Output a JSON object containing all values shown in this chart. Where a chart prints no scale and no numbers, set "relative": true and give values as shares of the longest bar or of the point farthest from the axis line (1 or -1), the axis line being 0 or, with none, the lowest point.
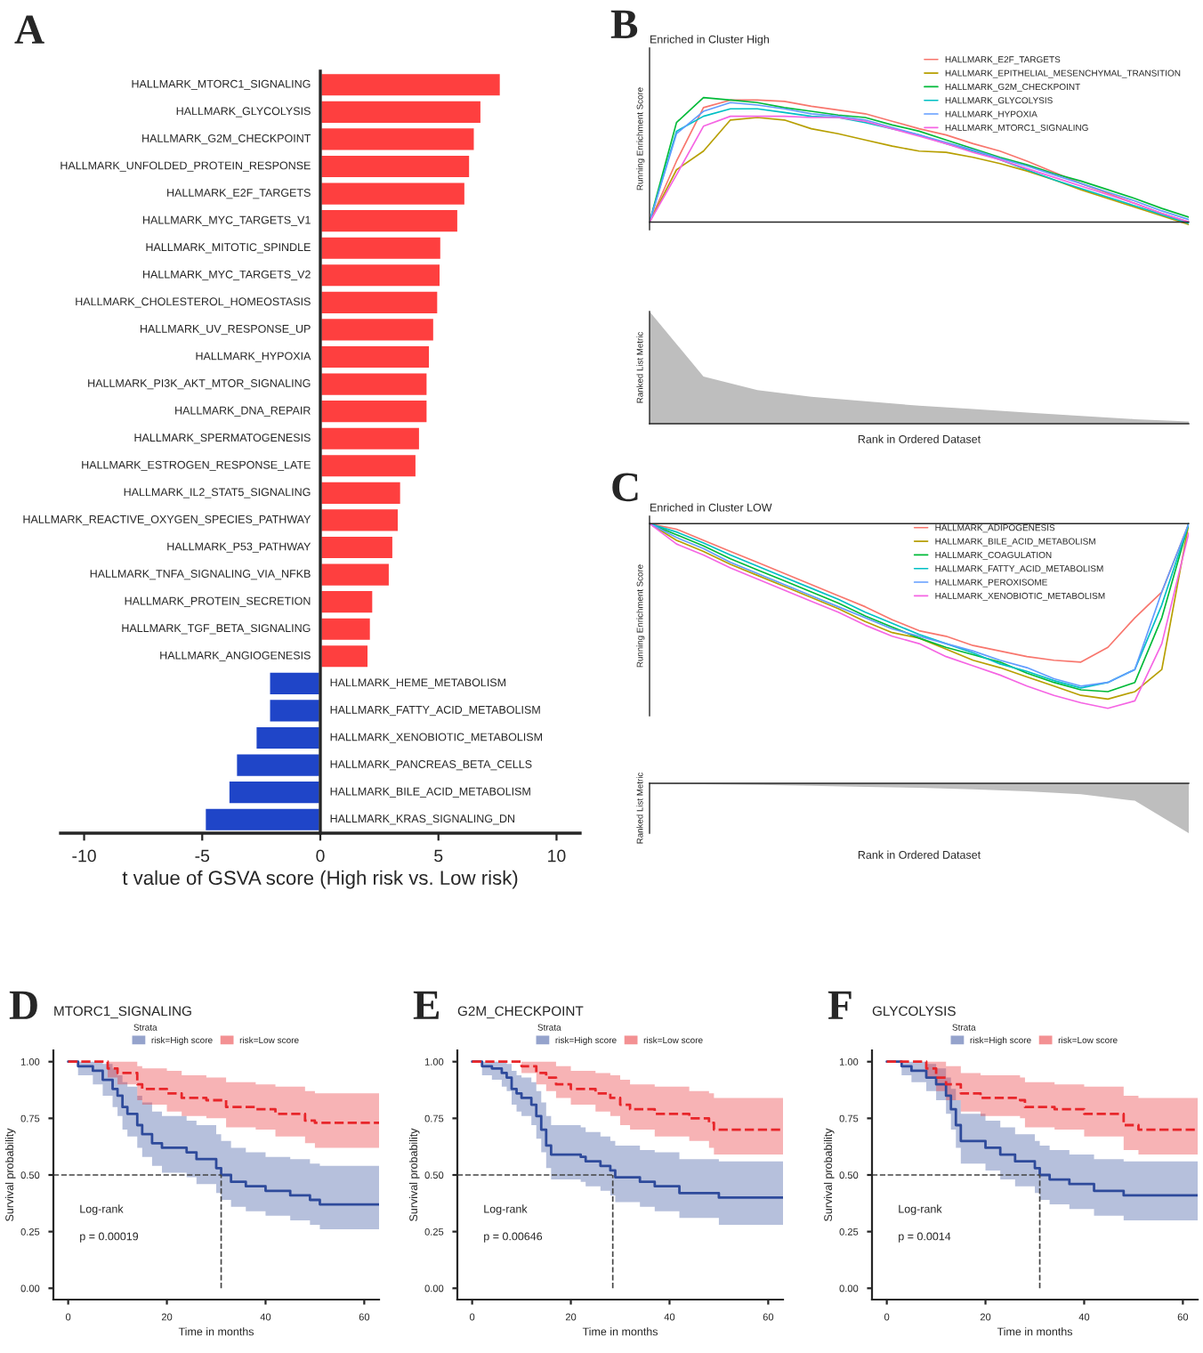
{
  "chart_data": [
    {
      "type": "bar",
      "orientation": "horizontal",
      "annotations": [
        "A"
      ],
      "xlabel": "t value of GSVA score (High risk vs. Low risk)",
      "categories": [
        "HALLMARK_MTORC1_SIGNALING",
        "HALLMARK_GLYCOLYSIS",
        "HALLMARK_G2M_CHECKPOINT",
        "HALLMARK_UNFOLDED_PROTEIN_RESPONSE",
        "HALLMARK_E2F_TARGETS",
        "HALLMARK_MYC_TARGETS_V1",
        "HALLMARK_MITOTIC_SPINDLE",
        "HALLMARK_MYC_TARGETS_V2",
        "HALLMARK_CHOLESTEROL_HOMEOSTASIS",
        "HALLMARK_UV_RESPONSE_UP",
        "HALLMARK_HYPOXIA",
        "HALLMARK_PI3K_AKT_MTOR_SIGNALING",
        "HALLMARK_DNA_REPAIR",
        "HALLMARK_SPERMATOGENESIS",
        "HALLMARK_ESTROGEN_RESPONSE_LATE",
        "HALLMARK_IL2_STAT5_SIGNALING",
        "HALLMARK_REACTIVE_OXYGEN_SPECIES_PATHWAY",
        "HALLMARK_P53_PATHWAY",
        "HALLMARK_TNFA_SIGNALING_VIA_NFKB",
        "HALLMARK_PROTEIN_SECRETION",
        "HALLMARK_TGF_BETA_SIGNALING",
        "HALLMARK_ANGIOGENESIS",
        "HALLMARK_HEME_METABOLISM",
        "HALLMARK_FATTY_ACID_METABOLISM",
        "HALLMARK_XENOBIOTIC_METABOLISM",
        "HALLMARK_PANCREAS_BETA_CELLS",
        "HALLMARK_BILE_ACID_METABOLISM",
        "HALLMARK_KRAS_SIGNALING_DN"
      ],
      "values": [
        7.65,
        6.83,
        6.55,
        6.35,
        6.15,
        5.85,
        5.13,
        5.1,
        5.0,
        4.83,
        4.65,
        4.55,
        4.55,
        4.23,
        4.08,
        3.43,
        3.33,
        3.1,
        2.95,
        2.25,
        2.15,
        2.05,
        -2.18,
        -2.18,
        -2.75,
        -3.58,
        -3.9,
        -4.9
      ],
      "colors": [
        "#fe3f3f",
        "#fe3f3f",
        "#fe3f3f",
        "#fe3f3f",
        "#fe3f3f",
        "#fe3f3f",
        "#fe3f3f",
        "#fe3f3f",
        "#fe3f3f",
        "#fe3f3f",
        "#fe3f3f",
        "#fe3f3f",
        "#fe3f3f",
        "#fe3f3f",
        "#fe3f3f",
        "#fe3f3f",
        "#fe3f3f",
        "#fe3f3f",
        "#fe3f3f",
        "#fe3f3f",
        "#fe3f3f",
        "#fe3f3f",
        "#1f45c8",
        "#1f45c8",
        "#1f45c8",
        "#1f45c8",
        "#1f45c8",
        "#1f45c8"
      ],
      "xlim": [
        -11,
        11
      ],
      "xticks": [
        -10,
        -5,
        0,
        5,
        10
      ]
    },
    {
      "type": "line",
      "relative": true,
      "annotations": [
        "B"
      ],
      "title": "Enriched in Cluster High",
      "ylabel": "Running Enrichment Score",
      "legend": "top right",
      "categories": [
        null,
        null,
        null,
        null,
        null,
        null,
        null,
        null,
        null,
        null,
        null,
        null,
        null,
        null,
        null,
        null,
        null,
        null,
        null,
        null,
        null
      ],
      "series": [
        {
          "name": "HALLMARK_E2F_TARGETS",
          "color": "#f8766d",
          "values": [
            0,
            0.49,
            0.92,
            0.98,
            0.98,
            0.97,
            0.93,
            0.9,
            0.87,
            0.81,
            0.75,
            0.7,
            0.63,
            0.57,
            0.49,
            0.4,
            0.31,
            0.23,
            0.15,
            0.07,
            0
          ]
        },
        {
          "name": "HALLMARK_EPITHELIAL_MESENCHYMAL_TRANSITION",
          "color": "#b79f00",
          "values": [
            0,
            0.42,
            0.57,
            0.82,
            0.84,
            0.82,
            0.75,
            0.71,
            0.66,
            0.61,
            0.57,
            0.56,
            0.52,
            0.47,
            0.41,
            0.34,
            0.26,
            0.19,
            0.12,
            0.05,
            -0.02
          ]
        },
        {
          "name": "HALLMARK_G2M_CHECKPOINT",
          "color": "#00ba38",
          "values": [
            0,
            0.8,
            1.0,
            0.98,
            0.96,
            0.92,
            0.89,
            0.86,
            0.84,
            0.78,
            0.73,
            0.66,
            0.59,
            0.52,
            0.46,
            0.39,
            0.33,
            0.26,
            0.19,
            0.11,
            0.04
          ]
        },
        {
          "name": "HALLMARK_GLYCOLYSIS",
          "color": "#00bfc4",
          "values": [
            0,
            0.73,
            0.85,
            0.91,
            0.91,
            0.88,
            0.85,
            0.84,
            0.8,
            0.75,
            0.7,
            0.63,
            0.57,
            0.5,
            0.42,
            0.34,
            0.27,
            0.2,
            0.13,
            0.06,
            -0.01
          ]
        },
        {
          "name": "HALLMARK_HYPOXIA",
          "color": "#619cff",
          "values": [
            0,
            0.71,
            0.89,
            0.96,
            0.94,
            0.91,
            0.87,
            0.85,
            0.82,
            0.76,
            0.7,
            0.64,
            0.58,
            0.51,
            0.45,
            0.38,
            0.31,
            0.24,
            0.17,
            0.09,
            0.02
          ]
        },
        {
          "name": "HALLMARK_MTORC1_SIGNALING",
          "color": "#f564e3",
          "values": [
            0,
            0.38,
            0.77,
            0.85,
            0.85,
            0.85,
            0.84,
            0.84,
            0.81,
            0.75,
            0.69,
            0.63,
            0.56,
            0.5,
            0.43,
            0.36,
            0.29,
            0.22,
            0.15,
            0.07,
            0
          ]
        }
      ]
    },
    {
      "type": "area",
      "relative": true,
      "ylabel": "Ranked List Metric",
      "xlabel": "Rank in Ordered Dataset",
      "categories": [
        null,
        null,
        null,
        null,
        null,
        null,
        null,
        null,
        null,
        null,
        null
      ],
      "series": [
        {
          "color": "#bebebe",
          "values": [
            1,
            0.42,
            0.3,
            0.24,
            0.2,
            0.16,
            0.13,
            0.1,
            0.07,
            0.04,
            0.02
          ]
        }
      ]
    },
    {
      "type": "line",
      "relative": true,
      "annotations": [
        "C"
      ],
      "title": "Enriched in Cluster LOW",
      "ylabel": "Running Enrichment Score",
      "legend": "top right",
      "categories": [
        null,
        null,
        null,
        null,
        null,
        null,
        null,
        null,
        null,
        null,
        null,
        null,
        null,
        null,
        null,
        null,
        null,
        null,
        null,
        null,
        null
      ],
      "series": [
        {
          "name": "HALLMARK_ADIPOGENESIS",
          "color": "#f8766d",
          "values": [
            0,
            -0.03,
            -0.09,
            -0.15,
            -0.21,
            -0.27,
            -0.33,
            -0.39,
            -0.45,
            -0.52,
            -0.58,
            -0.61,
            -0.66,
            -0.69,
            -0.72,
            -0.74,
            -0.75,
            -0.67,
            -0.51,
            -0.37,
            0
          ]
        },
        {
          "name": "HALLMARK_BILE_ACID_METABOLISM",
          "color": "#b79f00",
          "values": [
            0,
            -0.09,
            -0.15,
            -0.22,
            -0.28,
            -0.34,
            -0.4,
            -0.46,
            -0.53,
            -0.59,
            -0.62,
            -0.68,
            -0.74,
            -0.78,
            -0.83,
            -0.88,
            -0.93,
            -0.95,
            -0.91,
            -0.79,
            0
          ]
        },
        {
          "name": "HALLMARK_COAGULATION",
          "color": "#00ba38",
          "values": [
            0,
            -0.06,
            -0.12,
            -0.19,
            -0.25,
            -0.31,
            -0.37,
            -0.43,
            -0.5,
            -0.56,
            -0.62,
            -0.67,
            -0.71,
            -0.75,
            -0.81,
            -0.86,
            -0.9,
            -0.91,
            -0.86,
            -0.51,
            0
          ]
        },
        {
          "name": "HALLMARK_FATTY_ACID_METABOLISM",
          "color": "#00bfc4",
          "values": [
            0,
            -0.045,
            -0.105,
            -0.17,
            -0.23,
            -0.29,
            -0.35,
            -0.41,
            -0.48,
            -0.54,
            -0.6,
            -0.65,
            -0.7,
            -0.76,
            -0.8,
            -0.85,
            -0.89,
            -0.86,
            -0.79,
            -0.44,
            0
          ]
        },
        {
          "name": "HALLMARK_PEROXISOME",
          "color": "#619cff",
          "values": [
            0,
            -0.075,
            -0.135,
            -0.21,
            -0.27,
            -0.33,
            -0.39,
            -0.45,
            -0.51,
            -0.57,
            -0.61,
            -0.65,
            -0.69,
            -0.74,
            -0.78,
            -0.84,
            -0.88,
            -0.86,
            -0.79,
            -0.37,
            0
          ]
        },
        {
          "name": "HALLMARK_XENOBIOTIC_METABOLISM",
          "color": "#f564e3",
          "values": [
            0,
            -0.11,
            -0.17,
            -0.24,
            -0.3,
            -0.36,
            -0.42,
            -0.48,
            -0.55,
            -0.61,
            -0.65,
            -0.72,
            -0.77,
            -0.82,
            -0.88,
            -0.93,
            -0.97,
            -1.0,
            -0.96,
            -0.65,
            -0.05
          ]
        }
      ]
    },
    {
      "type": "area",
      "relative": true,
      "ylabel": "Ranked List Metric",
      "xlabel": "Rank in Ordered Dataset",
      "categories": [
        null,
        null,
        null,
        null,
        null,
        null,
        null,
        null,
        null,
        null,
        null
      ],
      "series": [
        {
          "color": "#bebebe",
          "values": [
            0,
            -0.02,
            -0.03,
            -0.05,
            -0.07,
            -0.09,
            -0.12,
            -0.16,
            -0.22,
            -0.35,
            -1
          ]
        }
      ]
    },
    {
      "type": "step",
      "title": "MTORC1_SIGNALING",
      "annotations": [
        "D",
        "Log-rank",
        "p = 0.00019"
      ],
      "xlabel": "Time in months",
      "ylabel": "Survival probability",
      "legend": "top",
      "legend_title": "Strata",
      "xlim": [
        -3,
        63
      ],
      "xticks": [
        0,
        20,
        40,
        60
      ],
      "ylim": [
        -0.05,
        1.05
      ],
      "yticks": [
        {
          "value": 0,
          "label": "0.00"
        },
        {
          "value": 0.25,
          "label": "0.25"
        },
        {
          "value": 0.5,
          "label": "0.50"
        },
        {
          "value": 0.75,
          "label": "0.75"
        },
        {
          "value": 1,
          "label": "1.00"
        }
      ],
      "ref_lines": [
        {
          "axis": "y",
          "value": 0.5,
          "line_style": "dashed"
        },
        {
          "axis": "x",
          "value": 31,
          "line_style": "dashed"
        }
      ],
      "series": [
        {
          "name": "risk=High score",
          "color": "#2e4a9b",
          "line_style": "solid",
          "x": [
            0,
            2,
            5,
            7,
            9,
            10,
            11,
            12,
            14,
            15,
            17,
            19,
            24,
            26,
            30,
            31,
            33,
            36,
            40,
            45,
            49,
            51,
            63
          ],
          "values": [
            1,
            0.98,
            0.96,
            0.92,
            0.88,
            0.85,
            0.8,
            0.77,
            0.72,
            0.68,
            0.64,
            0.62,
            0.6,
            0.57,
            0.53,
            0.5,
            0.47,
            0.45,
            0.43,
            0.41,
            0.39,
            0.37,
            0.37
          ],
          "lower": [
            1,
            0.94,
            0.9,
            0.85,
            0.8,
            0.76,
            0.7,
            0.67,
            0.62,
            0.58,
            0.54,
            0.51,
            0.49,
            0.46,
            0.42,
            0.39,
            0.36,
            0.34,
            0.32,
            0.3,
            0.28,
            0.26,
            0.26
          ],
          "upper": [
            1,
            1,
            1,
            0.99,
            0.97,
            0.94,
            0.91,
            0.89,
            0.85,
            0.82,
            0.78,
            0.76,
            0.74,
            0.72,
            0.68,
            0.65,
            0.62,
            0.6,
            0.58,
            0.57,
            0.55,
            0.54,
            0.54
          ]
        },
        {
          "name": "risk=Low score",
          "color": "#e8262a",
          "line_style": "dashed",
          "x": [
            0,
            8,
            10,
            14,
            15,
            20,
            23,
            28,
            32,
            38,
            42,
            48,
            50,
            63
          ],
          "values": [
            1,
            0.97,
            0.95,
            0.9,
            0.88,
            0.86,
            0.84,
            0.83,
            0.8,
            0.79,
            0.77,
            0.74,
            0.73,
            0.73
          ],
          "lower": [
            1,
            0.93,
            0.9,
            0.83,
            0.81,
            0.78,
            0.76,
            0.75,
            0.71,
            0.7,
            0.67,
            0.64,
            0.62,
            0.62
          ],
          "upper": [
            1,
            1,
            1,
            0.98,
            0.97,
            0.96,
            0.94,
            0.93,
            0.91,
            0.9,
            0.89,
            0.87,
            0.86,
            0.86
          ]
        }
      ]
    },
    {
      "type": "step",
      "title": "G2M_CHECKPOINT",
      "annotations": [
        "E",
        "Log-rank",
        "p = 0.00646"
      ],
      "xlabel": "Time in months",
      "ylabel": "Survival probability",
      "legend": "top",
      "legend_title": "Strata",
      "xlim": [
        -3,
        63
      ],
      "xticks": [
        0,
        20,
        40,
        60
      ],
      "ylim": [
        -0.05,
        1.05
      ],
      "yticks": [
        {
          "value": 0,
          "label": "0.00"
        },
        {
          "value": 0.25,
          "label": "0.25"
        },
        {
          "value": 0.5,
          "label": "0.50"
        },
        {
          "value": 0.75,
          "label": "0.75"
        },
        {
          "value": 1,
          "label": "1.00"
        }
      ],
      "ref_lines": [
        {
          "axis": "y",
          "value": 0.5,
          "line_style": "dashed"
        },
        {
          "axis": "x",
          "value": 28.5,
          "line_style": "dashed"
        }
      ],
      "series": [
        {
          "name": "risk=High score",
          "color": "#2e4a9b",
          "line_style": "solid",
          "x": [
            0,
            2,
            4,
            6,
            7,
            8,
            9,
            10,
            12,
            13,
            14,
            15,
            16,
            22,
            23,
            26,
            28,
            29,
            34,
            37,
            42,
            50,
            63
          ],
          "values": [
            1,
            0.98,
            0.97,
            0.95,
            0.93,
            0.88,
            0.86,
            0.84,
            0.81,
            0.76,
            0.7,
            0.63,
            0.59,
            0.58,
            0.56,
            0.54,
            0.52,
            0.49,
            0.47,
            0.45,
            0.42,
            0.4,
            0.4
          ],
          "lower": [
            1,
            0.94,
            0.92,
            0.89,
            0.87,
            0.81,
            0.78,
            0.76,
            0.72,
            0.66,
            0.6,
            0.53,
            0.48,
            0.47,
            0.45,
            0.43,
            0.41,
            0.38,
            0.36,
            0.34,
            0.31,
            0.28,
            0.28
          ],
          "upper": [
            1,
            1,
            1,
            1,
            0.99,
            0.96,
            0.94,
            0.93,
            0.91,
            0.87,
            0.82,
            0.76,
            0.72,
            0.71,
            0.69,
            0.67,
            0.65,
            0.63,
            0.61,
            0.6,
            0.57,
            0.56,
            0.56
          ]
        },
        {
          "name": "risk=Low score",
          "color": "#e8262a",
          "line_style": "dashed",
          "x": [
            0,
            10,
            13,
            15,
            17,
            20,
            25,
            28,
            30,
            32,
            37,
            44,
            48,
            49,
            63
          ],
          "values": [
            1,
            0.98,
            0.95,
            0.93,
            0.9,
            0.88,
            0.86,
            0.84,
            0.81,
            0.79,
            0.77,
            0.75,
            0.73,
            0.7,
            0.7
          ],
          "lower": [
            1,
            0.95,
            0.9,
            0.87,
            0.84,
            0.81,
            0.78,
            0.76,
            0.72,
            0.7,
            0.67,
            0.65,
            0.62,
            0.59,
            0.59
          ],
          "upper": [
            1,
            1,
            1,
            1,
            0.98,
            0.96,
            0.95,
            0.94,
            0.92,
            0.9,
            0.89,
            0.87,
            0.86,
            0.84,
            0.84
          ]
        }
      ]
    },
    {
      "type": "step",
      "title": "GLYCOLYSIS",
      "annotations": [
        "F",
        "Log-rank",
        "p = 0.0014"
      ],
      "xlabel": "Time in months",
      "ylabel": "Survival probability",
      "legend": "top",
      "legend_title": "Strata",
      "xlim": [
        -3,
        63
      ],
      "xticks": [
        0,
        20,
        40,
        60
      ],
      "ylim": [
        -0.05,
        1.05
      ],
      "yticks": [
        {
          "value": 0,
          "label": "0.00"
        },
        {
          "value": 0.25,
          "label": "0.25"
        },
        {
          "value": 0.5,
          "label": "0.50"
        },
        {
          "value": 0.75,
          "label": "0.75"
        },
        {
          "value": 1,
          "label": "1.00"
        }
      ],
      "ref_lines": [
        {
          "axis": "y",
          "value": 0.5,
          "line_style": "dashed"
        },
        {
          "axis": "x",
          "value": 31,
          "line_style": "dashed"
        }
      ],
      "series": [
        {
          "name": "risk=High score",
          "color": "#2e4a9b",
          "line_style": "solid",
          "x": [
            0,
            3,
            5,
            8,
            10,
            12,
            13,
            14,
            15,
            20,
            23,
            26,
            30,
            31,
            33,
            37,
            42,
            48,
            63
          ],
          "values": [
            1,
            0.98,
            0.96,
            0.93,
            0.9,
            0.85,
            0.79,
            0.72,
            0.65,
            0.62,
            0.59,
            0.56,
            0.53,
            0.5,
            0.48,
            0.46,
            0.43,
            0.41,
            0.41
          ],
          "lower": [
            1,
            0.94,
            0.91,
            0.87,
            0.83,
            0.77,
            0.7,
            0.62,
            0.55,
            0.52,
            0.48,
            0.45,
            0.42,
            0.39,
            0.37,
            0.35,
            0.32,
            0.3,
            0.3
          ],
          "upper": [
            1,
            1,
            1,
            0.99,
            0.97,
            0.93,
            0.88,
            0.83,
            0.77,
            0.74,
            0.71,
            0.68,
            0.65,
            0.63,
            0.61,
            0.59,
            0.57,
            0.56,
            0.56
          ]
        },
        {
          "name": "risk=Low score",
          "color": "#e8262a",
          "line_style": "dashed",
          "x": [
            0,
            8,
            10,
            12,
            15,
            19,
            27,
            28,
            34,
            40,
            48,
            51,
            63
          ],
          "values": [
            1,
            0.97,
            0.93,
            0.9,
            0.86,
            0.84,
            0.83,
            0.8,
            0.79,
            0.77,
            0.72,
            0.7,
            0.7
          ],
          "lower": [
            1,
            0.93,
            0.87,
            0.83,
            0.78,
            0.76,
            0.75,
            0.71,
            0.7,
            0.67,
            0.61,
            0.59,
            0.59
          ],
          "upper": [
            1,
            1,
            1,
            0.98,
            0.95,
            0.94,
            0.93,
            0.91,
            0.9,
            0.89,
            0.85,
            0.84,
            0.84
          ]
        }
      ]
    }
  ]
}
